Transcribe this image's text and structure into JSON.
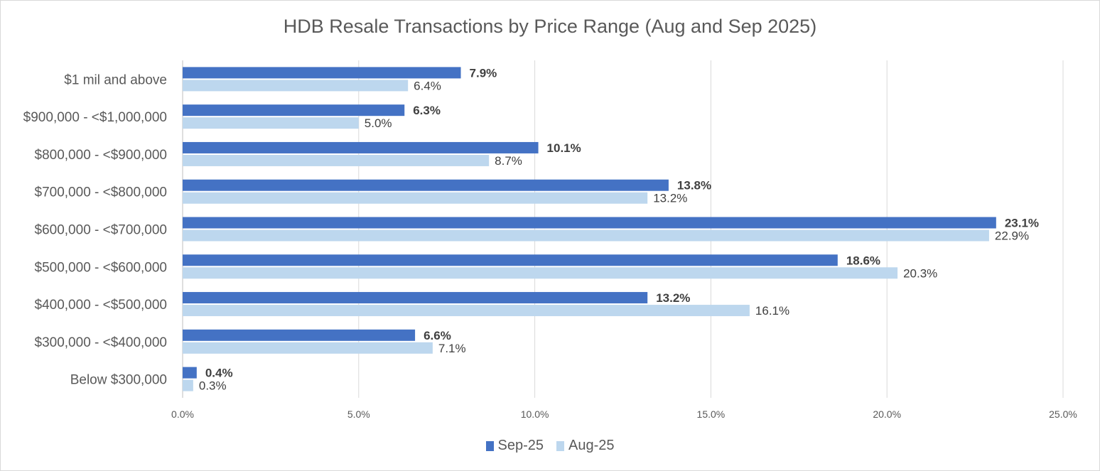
{
  "chart_data": {
    "type": "bar",
    "orientation": "horizontal",
    "title": "HDB Resale Transactions by Price Range (Aug and Sep 2025)",
    "xlabel": "",
    "ylabel": "",
    "xlim": [
      0,
      25
    ],
    "x_ticks": [
      "0.0%",
      "5.0%",
      "10.0%",
      "15.0%",
      "20.0%",
      "25.0%"
    ],
    "grid": true,
    "legend_position": "bottom",
    "categories": [
      "$1 mil and above",
      "$900,000 - <$1,000,000",
      "$800,000 - <$900,000",
      "$700,000 - <$800,000",
      "$600,000 - <$700,000",
      "$500,000 - <$600,000",
      "$400,000 - <$500,000",
      "$300,000 - <$400,000",
      "Below $300,000"
    ],
    "series": [
      {
        "name": "Sep-25",
        "color": "#4472c4",
        "values": [
          7.9,
          6.3,
          10.1,
          13.8,
          23.1,
          18.6,
          13.2,
          6.6,
          0.4
        ]
      },
      {
        "name": "Aug-25",
        "color": "#bdd7ee",
        "values": [
          6.4,
          5.0,
          8.7,
          13.2,
          22.9,
          20.3,
          16.1,
          7.1,
          0.3
        ]
      }
    ]
  }
}
